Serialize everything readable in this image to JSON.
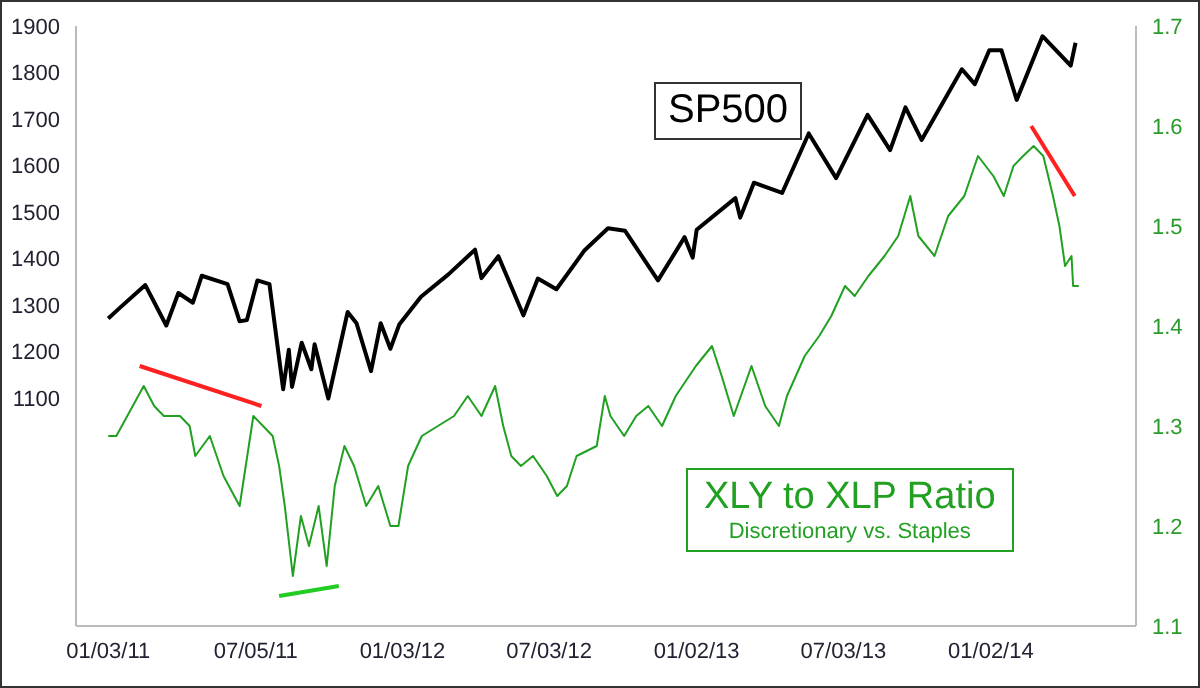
{
  "chart_data": {
    "type": "line",
    "xlim": [
      "2010-11-24",
      "2014-07-01"
    ],
    "xticks": [
      {
        "value": "2011-01-03",
        "label": "01/03/11"
      },
      {
        "value": "2011-07-05",
        "label": "07/05/11"
      },
      {
        "value": "2012-01-03",
        "label": "01/03/12"
      },
      {
        "value": "2012-07-03",
        "label": "07/03/12"
      },
      {
        "value": "2013-01-02",
        "label": "01/02/13"
      },
      {
        "value": "2013-07-03",
        "label": "07/03/13"
      },
      {
        "value": "2014-01-02",
        "label": "01/02/14"
      }
    ],
    "ylim": [
      610,
      1900
    ],
    "yticks": [
      1100,
      1200,
      1300,
      1400,
      1500,
      1600,
      1700,
      1800,
      1900
    ],
    "y2lim": [
      1.1,
      1.7
    ],
    "y2ticks": [
      1.1,
      1.2,
      1.3,
      1.4,
      1.5,
      1.6,
      1.7
    ],
    "grid": false,
    "legend": false,
    "marker": "none",
    "line_style": "solid",
    "annotations": [
      "Discretionary vs. Staples"
    ],
    "series": [
      {
        "name": "SP500",
        "color": "#000000",
        "x": [
          "2011-01-03",
          "2011-01-18",
          "2011-02-18",
          "2011-03-16",
          "2011-03-31",
          "2011-04-18",
          "2011-04-29",
          "2011-05-31",
          "2011-06-15",
          "2011-06-24",
          "2011-07-07",
          "2011-07-22",
          "2011-08-08",
          "2011-08-15",
          "2011-08-19",
          "2011-08-31",
          "2011-09-12",
          "2011-09-16",
          "2011-10-03",
          "2011-10-27",
          "2011-11-07",
          "2011-11-25",
          "2011-12-07",
          "2011-12-19",
          "2011-12-30",
          "2012-01-26",
          "2012-02-29",
          "2012-04-02",
          "2012-04-10",
          "2012-05-01",
          "2012-06-01",
          "2012-06-19",
          "2012-07-12",
          "2012-08-16",
          "2012-09-14",
          "2012-10-05",
          "2012-11-15",
          "2012-12-18",
          "2012-12-28",
          "2013-01-02",
          "2013-02-19",
          "2013-02-25",
          "2013-03-14",
          "2013-04-18",
          "2013-05-21",
          "2013-06-24",
          "2013-08-02",
          "2013-08-30",
          "2013-09-18",
          "2013-10-08",
          "2013-11-27",
          "2013-12-13",
          "2013-12-31",
          "2014-01-15",
          "2014-02-03",
          "2014-03-07",
          "2014-04-11",
          "2014-04-17"
        ],
        "values": [
          1271,
          1295,
          1343,
          1256,
          1326,
          1305,
          1363,
          1345,
          1265,
          1268,
          1353,
          1345,
          1119,
          1204,
          1124,
          1219,
          1162,
          1216,
          1099,
          1285,
          1261,
          1158,
          1261,
          1206,
          1258,
          1318,
          1366,
          1419,
          1358,
          1405,
          1278,
          1357,
          1334,
          1418,
          1465,
          1460,
          1353,
          1446,
          1402,
          1462,
          1530,
          1488,
          1563,
          1541,
          1669,
          1573,
          1709,
          1633,
          1725,
          1655,
          1807,
          1775,
          1848,
          1848,
          1741,
          1878,
          1815,
          1864
        ]
      },
      {
        "name": "XLY to XLP Ratio",
        "color": "#22a022",
        "axis": "y2",
        "x": [
          "2011-01-03",
          "2011-01-13",
          "2011-02-16",
          "2011-03-01",
          "2011-03-13",
          "2011-04-02",
          "2011-04-14",
          "2011-04-21",
          "2011-05-09",
          "2011-05-26",
          "2011-06-15",
          "2011-07-02",
          "2011-07-14",
          "2011-07-26",
          "2011-08-03",
          "2011-08-10",
          "2011-08-20",
          "2011-08-30",
          "2011-09-09",
          "2011-09-21",
          "2011-10-01",
          "2011-10-11",
          "2011-10-23",
          "2011-11-04",
          "2011-11-19",
          "2011-12-04",
          "2011-12-19",
          "2011-12-29",
          "2012-01-10",
          "2012-01-27",
          "2012-02-16",
          "2012-03-07",
          "2012-03-24",
          "2012-04-10",
          "2012-04-27",
          "2012-05-07",
          "2012-05-17",
          "2012-05-29",
          "2012-06-13",
          "2012-06-30",
          "2012-07-13",
          "2012-07-25",
          "2012-08-06",
          "2012-08-31",
          "2012-09-10",
          "2012-09-17",
          "2012-10-04",
          "2012-10-19",
          "2012-11-03",
          "2012-11-20",
          "2012-12-07",
          "2013-01-01",
          "2013-01-21",
          "2013-02-02",
          "2013-02-17",
          "2013-03-11",
          "2013-03-28",
          "2013-04-14",
          "2013-04-24",
          "2013-05-16",
          "2013-06-03",
          "2013-06-18",
          "2013-07-05",
          "2013-07-17",
          "2013-08-03",
          "2013-08-23",
          "2013-09-09",
          "2013-09-24",
          "2013-10-04",
          "2013-10-24",
          "2013-11-10",
          "2013-11-30",
          "2013-12-17",
          "2014-01-05",
          "2014-01-18",
          "2014-01-30",
          "2014-02-11",
          "2014-02-24",
          "2014-03-08",
          "2014-03-20",
          "2014-03-28",
          "2014-04-04",
          "2014-04-12",
          "2014-04-14",
          "2014-04-21"
        ],
        "values": [
          1.29,
          1.29,
          1.34,
          1.32,
          1.31,
          1.31,
          1.3,
          1.27,
          1.29,
          1.25,
          1.22,
          1.31,
          1.3,
          1.29,
          1.26,
          1.22,
          1.15,
          1.21,
          1.18,
          1.22,
          1.16,
          1.24,
          1.28,
          1.26,
          1.22,
          1.24,
          1.2,
          1.2,
          1.26,
          1.29,
          1.3,
          1.31,
          1.33,
          1.31,
          1.34,
          1.3,
          1.27,
          1.26,
          1.27,
          1.25,
          1.23,
          1.24,
          1.27,
          1.28,
          1.33,
          1.31,
          1.29,
          1.31,
          1.32,
          1.3,
          1.33,
          1.36,
          1.38,
          1.35,
          1.31,
          1.36,
          1.32,
          1.3,
          1.33,
          1.37,
          1.39,
          1.41,
          1.44,
          1.43,
          1.45,
          1.47,
          1.49,
          1.53,
          1.49,
          1.47,
          1.51,
          1.53,
          1.57,
          1.55,
          1.53,
          1.56,
          1.57,
          1.58,
          1.57,
          1.53,
          1.5,
          1.46,
          1.47,
          1.44,
          1.44
        ]
      },
      {
        "type": "line",
        "color": "#ff2020",
        "axis": "y2",
        "x": [
          "2011-02-11",
          "2011-07-12"
        ],
        "values": [
          1.36,
          1.32
        ]
      },
      {
        "type": "line",
        "color": "#22cc22",
        "axis": "y2",
        "x": [
          "2011-08-03",
          "2011-10-16"
        ],
        "values": [
          1.13,
          1.14
        ]
      },
      {
        "type": "line",
        "color": "#ff2020",
        "axis": "y2",
        "x": [
          "2014-02-21",
          "2014-04-16"
        ],
        "values": [
          1.6,
          1.53
        ]
      }
    ]
  }
}
